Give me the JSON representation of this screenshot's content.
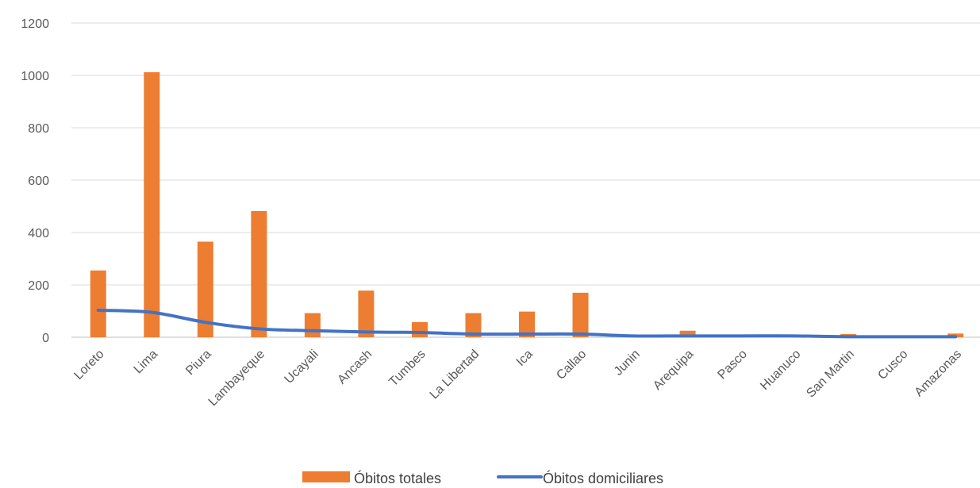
{
  "chart_data": {
    "type": "bar",
    "title": "",
    "xlabel": "",
    "ylabel": "",
    "ylim": [
      0,
      1200
    ],
    "yticks": [
      0,
      200,
      400,
      600,
      800,
      1000,
      1200
    ],
    "grid": true,
    "legend_position": "bottom",
    "categories": [
      "Loreto",
      "Lima",
      "Piura",
      "Lambayeque",
      "Ucayali",
      "Ancash",
      "Tumbes",
      "La Libertad",
      "Ica",
      "Callao",
      "Junin",
      "Arequipa",
      "Pasco",
      "Huanuco",
      "San Martin",
      "Cusco",
      "Amazonas"
    ],
    "series": [
      {
        "name": "Óbitos totales",
        "type": "bar",
        "color": "#ED7D31",
        "values": [
          255,
          1012,
          365,
          482,
          92,
          178,
          58,
          92,
          98,
          170,
          3,
          25,
          2,
          3,
          12,
          2,
          14
        ]
      },
      {
        "name": "Óbitos domiciliares",
        "type": "line",
        "color": "#4472C4",
        "values": [
          103,
          95,
          57,
          32,
          25,
          20,
          18,
          12,
          12,
          12,
          5,
          5,
          5,
          5,
          2,
          2,
          2
        ]
      }
    ]
  }
}
